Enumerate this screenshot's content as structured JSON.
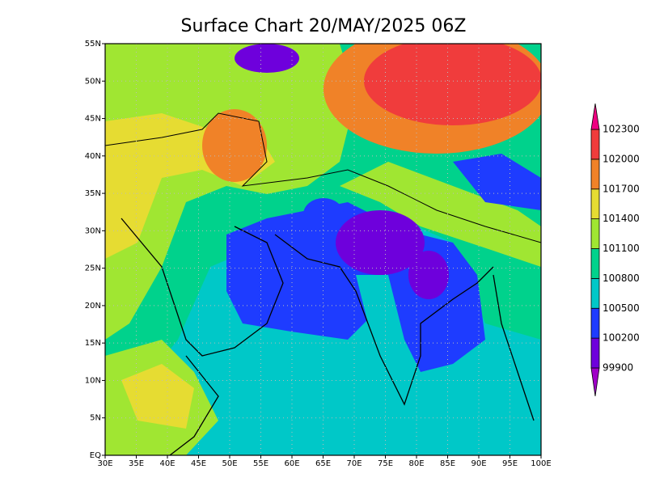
{
  "title": "Surface Chart 20/MAY/2025 06Z",
  "map": {
    "lonlim": [
      30,
      100
    ],
    "latlim": [
      0,
      55
    ],
    "lon_ticks": [
      {
        "value": 30,
        "label": "30E"
      },
      {
        "value": 35,
        "label": "35E"
      },
      {
        "value": 40,
        "label": "40E"
      },
      {
        "value": 45,
        "label": "45E"
      },
      {
        "value": 50,
        "label": "50E"
      },
      {
        "value": 55,
        "label": "55E"
      },
      {
        "value": 60,
        "label": "60E"
      },
      {
        "value": 65,
        "label": "65E"
      },
      {
        "value": 70,
        "label": "70E"
      },
      {
        "value": 75,
        "label": "75E"
      },
      {
        "value": 80,
        "label": "80E"
      },
      {
        "value": 85,
        "label": "85E"
      },
      {
        "value": 90,
        "label": "90E"
      },
      {
        "value": 95,
        "label": "95E"
      },
      {
        "value": 100,
        "label": "100E"
      }
    ],
    "lat_ticks": [
      {
        "value": 0,
        "label": "EQ"
      },
      {
        "value": 5,
        "label": "5N"
      },
      {
        "value": 10,
        "label": "10N"
      },
      {
        "value": 15,
        "label": "15N"
      },
      {
        "value": 20,
        "label": "20N"
      },
      {
        "value": 25,
        "label": "25N"
      },
      {
        "value": 30,
        "label": "30N"
      },
      {
        "value": 35,
        "label": "35N"
      },
      {
        "value": 40,
        "label": "40N"
      },
      {
        "value": 45,
        "label": "45N"
      },
      {
        "value": 50,
        "label": "50N"
      },
      {
        "value": 55,
        "label": "55N"
      }
    ],
    "grid": true
  },
  "colorbar": {
    "levels": [
      99900,
      100200,
      100500,
      100800,
      101100,
      101400,
      101700,
      102000,
      102300
    ],
    "colors": [
      "#a000c8",
      "#6e00dc",
      "#1e3cff",
      "#00c8c8",
      "#00d28c",
      "#a0e632",
      "#e6dc32",
      "#f08228",
      "#f03c3c",
      "#f00082"
    ]
  }
}
